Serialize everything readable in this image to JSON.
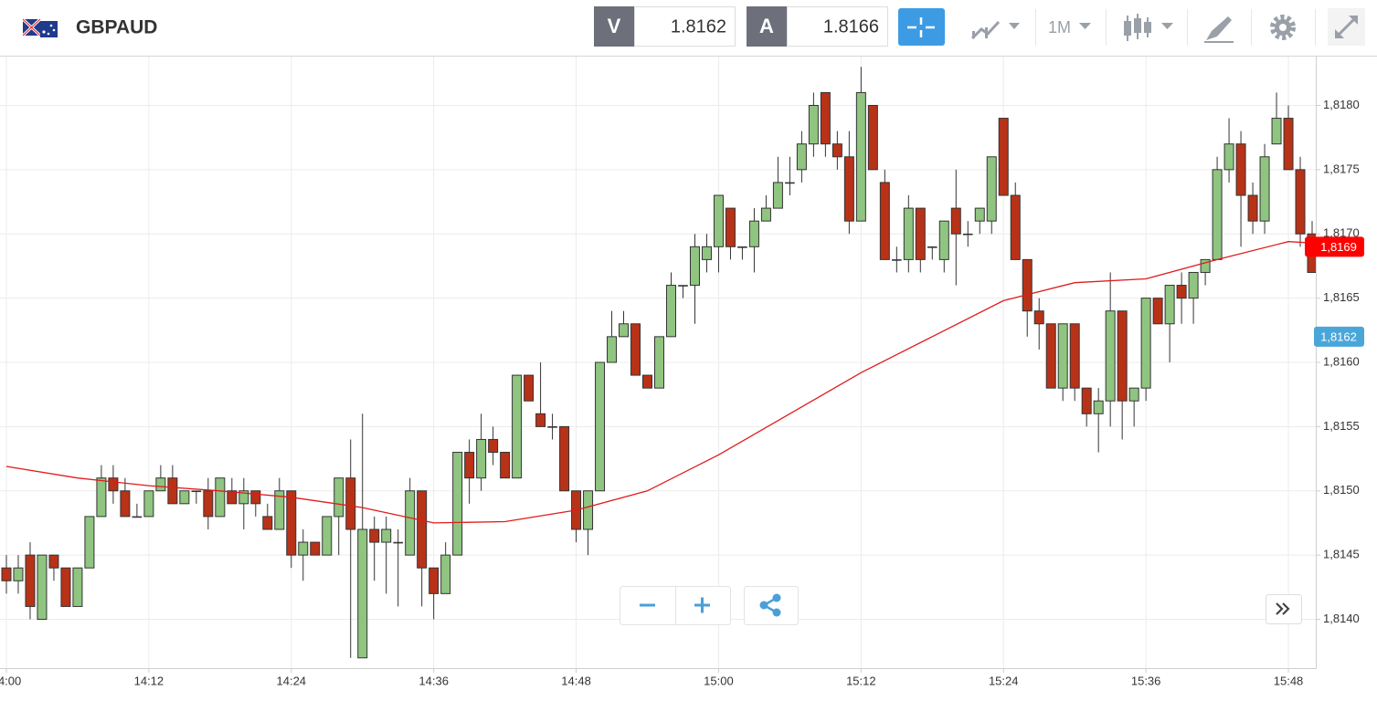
{
  "header": {
    "symbol": "GBPAUD",
    "bid_label": "V",
    "bid": "1.8162",
    "ask_label": "A",
    "ask": "1.8166",
    "timeframe": "1M"
  },
  "chart_data": {
    "type": "candlestick",
    "x": [
      "14:00",
      "14:01",
      "14:02",
      "14:03",
      "14:04",
      "14:05",
      "14:06",
      "14:07",
      "14:08",
      "14:09",
      "14:10",
      "14:11",
      "14:12",
      "14:13",
      "14:14",
      "14:15",
      "14:16",
      "14:17",
      "14:18",
      "14:19",
      "14:20",
      "14:21",
      "14:22",
      "14:23",
      "14:24",
      "14:25",
      "14:26",
      "14:27",
      "14:28",
      "14:29",
      "14:30",
      "14:31",
      "14:32",
      "14:33",
      "14:34",
      "14:35",
      "14:36",
      "14:37",
      "14:38",
      "14:39",
      "14:40",
      "14:41",
      "14:42",
      "14:43",
      "14:44",
      "14:45",
      "14:46",
      "14:47",
      "14:48",
      "14:49",
      "14:50",
      "14:51",
      "14:52",
      "14:53",
      "14:54",
      "14:55",
      "14:56",
      "14:57",
      "14:58",
      "14:59",
      "15:00",
      "15:01",
      "15:02",
      "15:03",
      "15:04",
      "15:05",
      "15:06",
      "15:07",
      "15:08",
      "15:09",
      "15:10",
      "15:11",
      "15:12",
      "15:13",
      "15:14",
      "15:15",
      "15:16",
      "15:17",
      "15:18",
      "15:19",
      "15:20",
      "15:21",
      "15:22",
      "15:23",
      "15:24",
      "15:25",
      "15:26",
      "15:27",
      "15:28",
      "15:29",
      "15:30",
      "15:31",
      "15:32",
      "15:33",
      "15:34",
      "15:35",
      "15:36",
      "15:37",
      "15:38",
      "15:39",
      "15:40",
      "15:41",
      "15:42",
      "15:43",
      "15:44",
      "15:45",
      "15:46",
      "15:47",
      "15:48",
      "15:49",
      "15:50"
    ],
    "open": [
      1.8144,
      1.8143,
      1.8145,
      1.814,
      1.8145,
      1.8144,
      1.8141,
      1.8144,
      1.8148,
      1.8151,
      1.815,
      1.8148,
      1.8148,
      1.815,
      1.8151,
      1.8149,
      1.815,
      1.815,
      1.8148,
      1.815,
      1.8149,
      1.815,
      1.8148,
      1.8147,
      1.815,
      1.8145,
      1.8146,
      1.8145,
      1.8148,
      1.8151,
      1.8137,
      1.8147,
      1.8146,
      1.8146,
      1.8145,
      1.815,
      1.8144,
      1.8142,
      1.8145,
      1.8153,
      1.8151,
      1.8154,
      1.8153,
      1.8151,
      1.8159,
      1.8156,
      1.8155,
      1.8155,
      1.815,
      1.8147,
      1.815,
      1.816,
      1.8162,
      1.8163,
      1.8159,
      1.8158,
      1.8162,
      1.8166,
      1.8166,
      1.8168,
      1.8169,
      1.8172,
      1.8169,
      1.8169,
      1.8171,
      1.8172,
      1.8174,
      1.8175,
      1.8177,
      1.8181,
      1.8177,
      1.8176,
      1.8171,
      1.818,
      1.8174,
      1.8168,
      1.8168,
      1.8172,
      1.8169,
      1.8168,
      1.8172,
      1.817,
      1.8171,
      1.8171,
      1.8179,
      1.8173,
      1.8168,
      1.8164,
      1.8163,
      1.8158,
      1.8163,
      1.8158,
      1.8156,
      1.8157,
      1.8164,
      1.8157,
      1.8158,
      1.8165,
      1.8163,
      1.8166,
      1.8165,
      1.8167,
      1.8168,
      1.8175,
      1.8177,
      1.8173,
      1.8171,
      1.8177,
      1.8179,
      1.8175,
      1.817
    ],
    "high": [
      1.8145,
      1.8145,
      1.8146,
      1.8145,
      1.8145,
      1.8144,
      1.8144,
      1.8148,
      1.8152,
      1.8152,
      1.8151,
      1.8149,
      1.815,
      1.8152,
      1.8152,
      1.815,
      1.815,
      1.8151,
      1.8151,
      1.8151,
      1.8151,
      1.815,
      1.8149,
      1.8151,
      1.815,
      1.8147,
      1.8146,
      1.8148,
      1.8151,
      1.8154,
      1.8156,
      1.8148,
      1.8148,
      1.8147,
      1.8151,
      1.815,
      1.8144,
      1.8146,
      1.8153,
      1.8154,
      1.8156,
      1.8155,
      1.8153,
      1.8159,
      1.8159,
      1.816,
      1.8156,
      1.8155,
      1.815,
      1.815,
      1.816,
      1.8164,
      1.8164,
      1.8163,
      1.8159,
      1.8162,
      1.8167,
      1.8166,
      1.817,
      1.817,
      1.8173,
      1.8172,
      1.8169,
      1.8172,
      1.8173,
      1.8176,
      1.8176,
      1.8178,
      1.8181,
      1.8181,
      1.8178,
      1.8178,
      1.8183,
      1.818,
      1.8175,
      1.8169,
      1.8173,
      1.8172,
      1.8169,
      1.8171,
      1.8175,
      1.8171,
      1.8172,
      1.8176,
      1.8179,
      1.8174,
      1.8168,
      1.8165,
      1.8163,
      1.8163,
      1.8163,
      1.8158,
      1.8158,
      1.8167,
      1.8164,
      1.8158,
      1.8165,
      1.8165,
      1.8166,
      1.8167,
      1.8167,
      1.8168,
      1.8176,
      1.8179,
      1.8178,
      1.8174,
      1.8177,
      1.8181,
      1.818,
      1.8176,
      1.8171
    ],
    "low": [
      1.8142,
      1.8142,
      1.814,
      1.814,
      1.8143,
      1.8141,
      1.8141,
      1.8144,
      1.8148,
      1.8149,
      1.8148,
      1.8148,
      1.8148,
      1.815,
      1.8149,
      1.8149,
      1.8149,
      1.8147,
      1.8148,
      1.8149,
      1.8147,
      1.8148,
      1.8147,
      1.8147,
      1.8144,
      1.8143,
      1.8145,
      1.8145,
      1.8145,
      1.8137,
      1.8137,
      1.8143,
      1.8142,
      1.8141,
      1.8145,
      1.8141,
      1.814,
      1.8142,
      1.8145,
      1.8149,
      1.815,
      1.8152,
      1.8151,
      1.8151,
      1.8157,
      1.8155,
      1.8154,
      1.815,
      1.8146,
      1.8145,
      1.815,
      1.816,
      1.8162,
      1.8159,
      1.8158,
      1.8158,
      1.8162,
      1.8165,
      1.8163,
      1.8167,
      1.8167,
      1.8168,
      1.8168,
      1.8167,
      1.8171,
      1.8172,
      1.8173,
      1.8174,
      1.8176,
      1.8176,
      1.8175,
      1.817,
      1.8171,
      1.8175,
      1.8168,
      1.8167,
      1.8167,
      1.8167,
      1.8168,
      1.8167,
      1.8166,
      1.8169,
      1.817,
      1.817,
      1.8173,
      1.8168,
      1.8162,
      1.8161,
      1.8158,
      1.8157,
      1.8157,
      1.8155,
      1.8153,
      1.8155,
      1.8154,
      1.8155,
      1.8157,
      1.8163,
      1.816,
      1.8163,
      1.8163,
      1.8166,
      1.8168,
      1.8174,
      1.8169,
      1.817,
      1.817,
      1.8177,
      1.8175,
      1.8169,
      1.8167
    ],
    "close": [
      1.8143,
      1.8144,
      1.8141,
      1.8145,
      1.8144,
      1.8141,
      1.8144,
      1.8148,
      1.8151,
      1.815,
      1.8148,
      1.8148,
      1.815,
      1.8151,
      1.8149,
      1.815,
      1.815,
      1.8148,
      1.8151,
      1.8149,
      1.815,
      1.8149,
      1.8147,
      1.815,
      1.8145,
      1.8146,
      1.8145,
      1.8148,
      1.8151,
      1.8147,
      1.8147,
      1.8146,
      1.8147,
      1.8146,
      1.815,
      1.8144,
      1.8142,
      1.8145,
      1.8153,
      1.8151,
      1.8154,
      1.8153,
      1.8151,
      1.8159,
      1.8157,
      1.8155,
      1.8155,
      1.815,
      1.8147,
      1.815,
      1.816,
      1.8162,
      1.8163,
      1.8159,
      1.8158,
      1.8162,
      1.8166,
      1.8166,
      1.8169,
      1.8169,
      1.8173,
      1.8169,
      1.8169,
      1.8171,
      1.8172,
      1.8174,
      1.8174,
      1.8177,
      1.818,
      1.8177,
      1.8176,
      1.8171,
      1.8181,
      1.8175,
      1.8168,
      1.8168,
      1.8172,
      1.8168,
      1.8169,
      1.8171,
      1.817,
      1.817,
      1.8172,
      1.8176,
      1.8173,
      1.8168,
      1.8164,
      1.8163,
      1.8158,
      1.8163,
      1.8158,
      1.8156,
      1.8157,
      1.8164,
      1.8157,
      1.8158,
      1.8165,
      1.8163,
      1.8166,
      1.8165,
      1.8167,
      1.8168,
      1.8175,
      1.8177,
      1.8173,
      1.8171,
      1.8176,
      1.8179,
      1.8175,
      1.817,
      1.8167
    ],
    "up_color": "#8fc580",
    "down_color": "#b83218",
    "ma": {
      "color": "#e01b1b",
      "x": [
        "14:00",
        "14:06",
        "14:12",
        "14:18",
        "14:24",
        "14:30",
        "14:36",
        "14:42",
        "14:48",
        "14:54",
        "15:00",
        "15:06",
        "15:12",
        "15:18",
        "15:24",
        "15:30",
        "15:36",
        "15:42",
        "15:48",
        "15:50"
      ],
      "values": [
        1.81519,
        1.8151,
        1.81504,
        1.815,
        1.81495,
        1.81487,
        1.81475,
        1.81476,
        1.81485,
        1.815,
        1.81528,
        1.8156,
        1.81592,
        1.8162,
        1.81648,
        1.81662,
        1.81665,
        1.8168,
        1.81694,
        1.81693
      ]
    },
    "xlim": [
      "13:59",
      "15:51"
    ],
    "xticks": [
      "14:00",
      "14:12",
      "14:24",
      "14:36",
      "14:48",
      "15:00",
      "15:12",
      "15:24",
      "15:36",
      "15:48"
    ],
    "ylim": [
      1.81362,
      1.81838
    ],
    "yticks": [
      {
        "value": 1.814,
        "label": "1,8140"
      },
      {
        "value": 1.8145,
        "label": "1,8145"
      },
      {
        "value": 1.815,
        "label": "1,8150"
      },
      {
        "value": 1.8155,
        "label": "1,8155"
      },
      {
        "value": 1.816,
        "label": "1,8160"
      },
      {
        "value": 1.8165,
        "label": "1,8165"
      },
      {
        "value": 1.817,
        "label": "1,8170"
      },
      {
        "value": 1.8175,
        "label": "1,8175"
      },
      {
        "value": 1.818,
        "label": "1,8180"
      }
    ],
    "grid": true,
    "price_tags": [
      {
        "value": 1.8169,
        "label": "1,8169",
        "color": "#ff0000"
      },
      {
        "value": 1.8162,
        "label": "1,8162",
        "color": "#4aa6d9"
      }
    ]
  }
}
